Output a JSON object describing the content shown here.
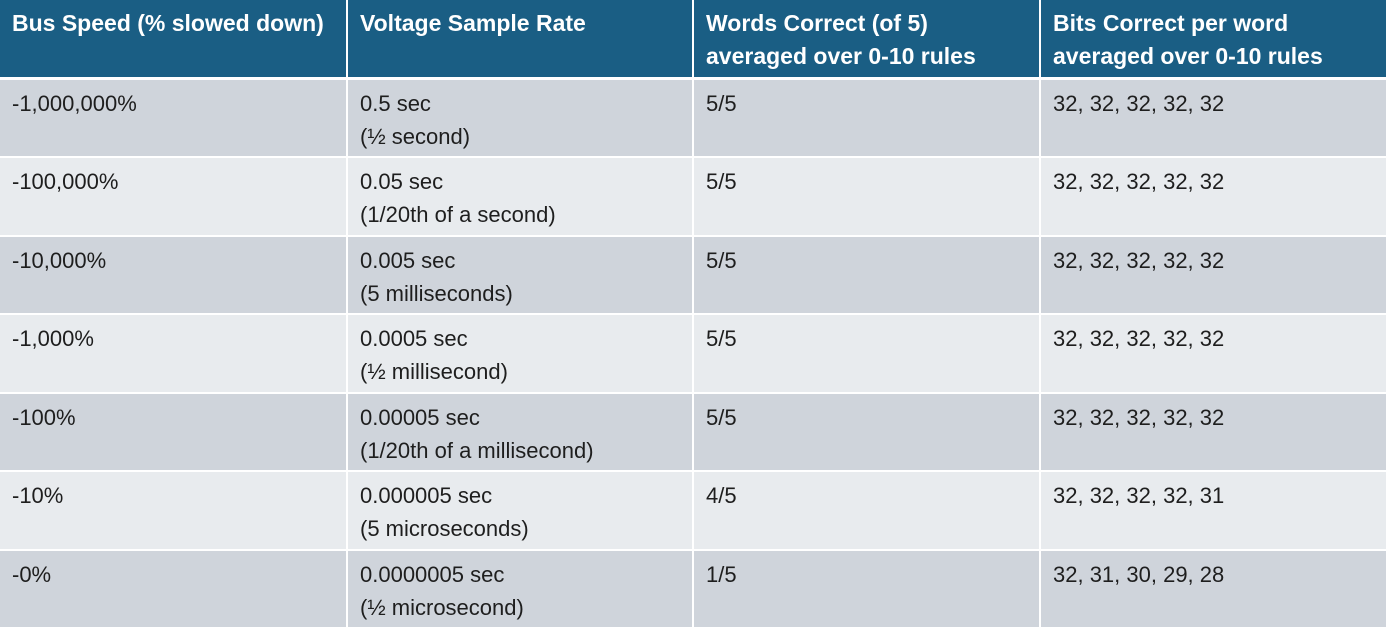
{
  "table": {
    "headers": [
      "Bus Speed (% slowed down)",
      "Voltage Sample Rate",
      "Words Correct (of 5) averaged over 0-10 rules",
      "Bits Correct per word averaged over 0-10 rules"
    ],
    "rows": [
      {
        "bus_speed": "-1,000,000%",
        "sample_rate": "0.5 sec",
        "sample_rate_note": "(½ second)",
        "words_correct": "5/5",
        "bits_correct": "32, 32, 32, 32, 32"
      },
      {
        "bus_speed": "-100,000%",
        "sample_rate": "0.05 sec",
        "sample_rate_note": "(1/20th of a second)",
        "words_correct": "5/5",
        "bits_correct": "32, 32, 32, 32, 32"
      },
      {
        "bus_speed": "-10,000%",
        "sample_rate": "0.005 sec",
        "sample_rate_note": "(5 milliseconds)",
        "words_correct": "5/5",
        "bits_correct": "32, 32, 32, 32, 32"
      },
      {
        "bus_speed": "-1,000%",
        "sample_rate": "0.0005 sec",
        "sample_rate_note": "(½ millisecond)",
        "words_correct": "5/5",
        "bits_correct": "32, 32, 32, 32, 32"
      },
      {
        "bus_speed": "-100%",
        "sample_rate": "0.00005 sec",
        "sample_rate_note": "(1/20th of a millisecond)",
        "words_correct": "5/5",
        "bits_correct": "32, 32, 32, 32, 32"
      },
      {
        "bus_speed": "-10%",
        "sample_rate": "0.000005 sec",
        "sample_rate_note": "(5 microseconds)",
        "words_correct": "4/5",
        "bits_correct": "32, 32, 32, 32, 31"
      },
      {
        "bus_speed": "-0%",
        "sample_rate": "0.0000005 sec",
        "sample_rate_note": "(½ microsecond)",
        "words_correct": "1/5",
        "bits_correct": "32, 31, 30, 29, 28"
      }
    ]
  },
  "colors": {
    "header_background": "#1a5e84",
    "header_text": "#ffffff",
    "row_odd_background": "#cfd4db",
    "row_even_background": "#e8ebee",
    "body_text": "#1e1e1e"
  }
}
